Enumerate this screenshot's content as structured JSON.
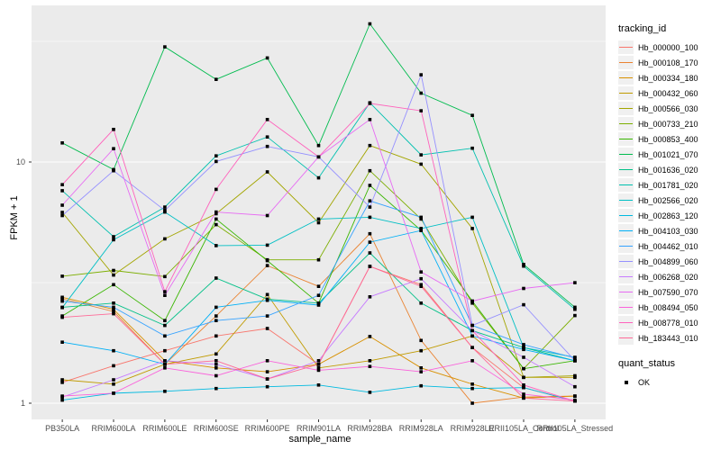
{
  "chart_data": {
    "type": "line",
    "title": "",
    "xlabel": "sample_name",
    "ylabel": "FPKM + 1",
    "x_categories": [
      "PB350LA",
      "RRIM600LA",
      "RRIM600LE",
      "RRIM600SE",
      "RRIM600PE",
      "RRIM901LA",
      "RRIM928BA",
      "RRIM928LA",
      "RRIM928LE",
      "RRII105LA_Control",
      "RRII105LA_Stressed"
    ],
    "y_axis": {
      "scale": "log10",
      "major_ticks": [
        1,
        10
      ],
      "minor_ticks": [
        3.162,
        31.62
      ],
      "visible_range": [
        0.86,
        44.6
      ]
    },
    "legend": {
      "color_title": "tracking_id",
      "shape_title": "quant_status",
      "shape_items": [
        {
          "label": "OK",
          "marker": "black-square"
        }
      ],
      "position": "right"
    },
    "style": {
      "panel_bg": "#ebebeb",
      "grid_major": "#ffffff",
      "grid_minor": "#ffffff",
      "marker_color": "#000000",
      "tick_color": "#333333"
    },
    "series": [
      {
        "name": "Hb_000000_100",
        "color": "#F8766D",
        "quant_status": "OK",
        "values": [
          1.22,
          1.43,
          1.65,
          1.9,
          2.04,
          1.45,
          3.69,
          3.1,
          1.7,
          1.16,
          1.02
        ]
      },
      {
        "name": "Hb_000108_170",
        "color": "#EA8331",
        "quant_status": "OK",
        "values": [
          2.71,
          2.4,
          1.45,
          2.3,
          3.72,
          3.05,
          5.04,
          1.82,
          1.0,
          1.06,
          1.07
        ]
      },
      {
        "name": "Hb_000334_180",
        "color": "#D89000",
        "quant_status": "OK",
        "values": [
          2.75,
          2.45,
          1.5,
          1.4,
          1.35,
          1.45,
          1.89,
          1.4,
          1.2,
          1.05,
          1.07
        ]
      },
      {
        "name": "Hb_000432_060",
        "color": "#C09B00",
        "quant_status": "OK",
        "values": [
          1.25,
          1.2,
          1.45,
          1.6,
          2.82,
          1.4,
          1.5,
          1.65,
          1.9,
          1.28,
          1.28
        ]
      },
      {
        "name": "Hb_000566_030",
        "color": "#A3A500",
        "quant_status": "OK",
        "values": [
          6.18,
          3.4,
          4.8,
          6.1,
          9.1,
          5.6,
          11.7,
          9.8,
          5.3,
          1.28,
          1.3
        ]
      },
      {
        "name": "Hb_000733_210",
        "color": "#7CAE00",
        "quant_status": "OK",
        "values": [
          3.36,
          3.55,
          3.35,
          5.5,
          3.93,
          3.93,
          9.2,
          5.8,
          2.6,
          1.39,
          2.31
        ]
      },
      {
        "name": "Hb_000853_400",
        "color": "#39B600",
        "quant_status": "OK",
        "values": [
          2.3,
          3.1,
          2.2,
          5.8,
          3.9,
          2.6,
          8.0,
          5.2,
          2.65,
          1.39,
          1.5
        ]
      },
      {
        "name": "Hb_001021_070",
        "color": "#00BB4E",
        "quant_status": "OK",
        "values": [
          12.0,
          9.3,
          30.0,
          22.0,
          27.0,
          11.7,
          37.4,
          19.3,
          15.6,
          3.76,
          2.5
        ]
      },
      {
        "name": "Hb_001636_020",
        "color": "#00C087",
        "quant_status": "OK",
        "values": [
          2.5,
          2.6,
          2.1,
          3.3,
          2.7,
          2.6,
          4.2,
          2.6,
          2.0,
          1.7,
          1.5
        ]
      },
      {
        "name": "Hb_001781_020",
        "color": "#00C0AF",
        "quant_status": "OK",
        "values": [
          7.6,
          4.9,
          6.5,
          10.6,
          12.7,
          8.6,
          17.6,
          10.7,
          11.4,
          3.7,
          2.45
        ]
      },
      {
        "name": "Hb_002566_020",
        "color": "#00BFC4",
        "quant_status": "OK",
        "values": [
          2.49,
          4.76,
          6.2,
          4.5,
          4.52,
          5.8,
          5.9,
          5.3,
          5.9,
          1.7,
          1.55
        ]
      },
      {
        "name": "Hb_002863_120",
        "color": "#00BAE0",
        "quant_status": "OK",
        "values": [
          1.03,
          1.1,
          1.12,
          1.15,
          1.17,
          1.19,
          1.11,
          1.18,
          1.15,
          1.16,
          1.02
        ]
      },
      {
        "name": "Hb_004103_030",
        "color": "#00B0F6",
        "quant_status": "OK",
        "values": [
          1.79,
          1.65,
          1.45,
          2.5,
          2.67,
          2.55,
          4.65,
          5.2,
          1.9,
          1.67,
          1.5
        ]
      },
      {
        "name": "Hb_004462_010",
        "color": "#35A2FF",
        "quant_status": "OK",
        "values": [
          2.65,
          2.5,
          1.9,
          2.2,
          2.3,
          2.8,
          6.9,
          5.9,
          2.1,
          1.75,
          1.54
        ]
      },
      {
        "name": "Hb_004899_060",
        "color": "#9590FF",
        "quant_status": "OK",
        "values": [
          6.0,
          9.2,
          6.3,
          10.05,
          11.6,
          10.5,
          6.5,
          23.0,
          2.1,
          2.56,
          1.5
        ]
      },
      {
        "name": "Hb_006268_020",
        "color": "#C77CFF",
        "quant_status": "OK",
        "values": [
          1.06,
          1.25,
          1.5,
          1.45,
          1.26,
          1.5,
          2.76,
          3.28,
          2.0,
          1.55,
          1.17
        ]
      },
      {
        "name": "Hb_007590_070",
        "color": "#E76BF3",
        "quant_status": "OK",
        "values": [
          6.62,
          11.36,
          2.8,
          6.2,
          6.0,
          10.5,
          15.0,
          3.5,
          2.65,
          2.99,
          3.16
        ]
      },
      {
        "name": "Hb_008494_050",
        "color": "#FA62DB",
        "quant_status": "OK",
        "values": [
          1.07,
          1.1,
          1.4,
          1.3,
          1.5,
          1.37,
          1.42,
          1.35,
          1.5,
          1.09,
          1.03
        ]
      },
      {
        "name": "Hb_008778_010",
        "color": "#FF62BC",
        "quant_status": "OK",
        "values": [
          8.05,
          13.65,
          2.9,
          7.7,
          15.0,
          10.5,
          17.5,
          16.3,
          2.0,
          1.19,
          1.02
        ]
      },
      {
        "name": "Hb_183443_010",
        "color": "#FF6A98",
        "quant_status": "OK",
        "values": [
          2.27,
          2.35,
          1.45,
          1.5,
          1.26,
          1.45,
          3.69,
          3.05,
          1.7,
          1.05,
          1.02
        ]
      }
    ]
  }
}
